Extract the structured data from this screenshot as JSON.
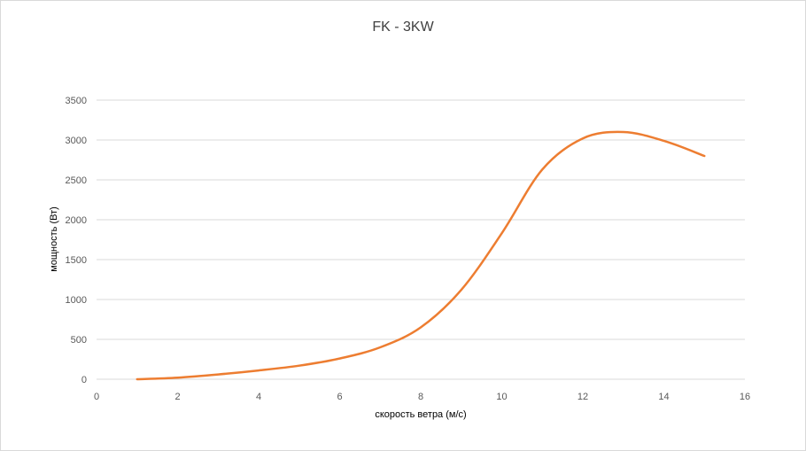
{
  "chart_data": {
    "type": "line",
    "title": "FK - 3KW",
    "xlabel": "скорость ветра (м/с)",
    "ylabel": "мощность (Вт)",
    "xlim": [
      0,
      16
    ],
    "ylim": [
      0,
      3500
    ],
    "x_ticks": [
      "0",
      "2",
      "4",
      "6",
      "8",
      "10",
      "12",
      "14",
      "16"
    ],
    "y_ticks": [
      "0",
      "500",
      "1000",
      "1500",
      "2000",
      "2500",
      "3000",
      "3500"
    ],
    "grid": "horizontal",
    "legend": "none",
    "series": [
      {
        "color": "#ED7D31",
        "x": [
          1,
          2,
          3,
          4,
          5,
          6,
          7,
          8,
          9,
          10,
          11,
          12,
          13,
          14,
          15
        ],
        "y": [
          0,
          20,
          60,
          110,
          170,
          260,
          400,
          650,
          1120,
          1830,
          2630,
          3020,
          3100,
          2990,
          2800
        ]
      }
    ]
  }
}
